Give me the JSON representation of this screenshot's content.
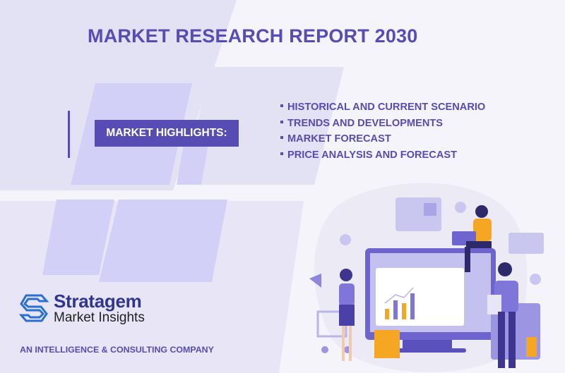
{
  "header": {
    "title": "MARKET RESEARCH REPORT 2030"
  },
  "highlights": {
    "label": "MARKET HIGHLIGHTS:",
    "items": [
      {
        "label": "HISTORICAL AND CURRENT SCENARIO"
      },
      {
        "label": "TRENDS AND DEVELOPMENTS"
      },
      {
        "label": "MARKET FORECAST"
      },
      {
        "label": "PRICE ANALYSIS AND FORECAST"
      }
    ]
  },
  "logo": {
    "brand": "Stratagem",
    "sub": "Market Insights"
  },
  "tagline": "AN INTELLIGENCE & CONSULTING COMPANY",
  "colors": {
    "accent": "#574cb3",
    "brand_blue": "#2f3590",
    "orange": "#f5a623",
    "shape_light": "#e3e1f4",
    "shape_mid": "#d3d0f7"
  },
  "illustration": {
    "icons": [
      "monitor-with-chart",
      "megaphone",
      "shopping-cart",
      "shopping-bag",
      "laptop",
      "calculator",
      "like-bubble",
      "heart-bubble",
      "play-bubble",
      "cart-card"
    ]
  }
}
